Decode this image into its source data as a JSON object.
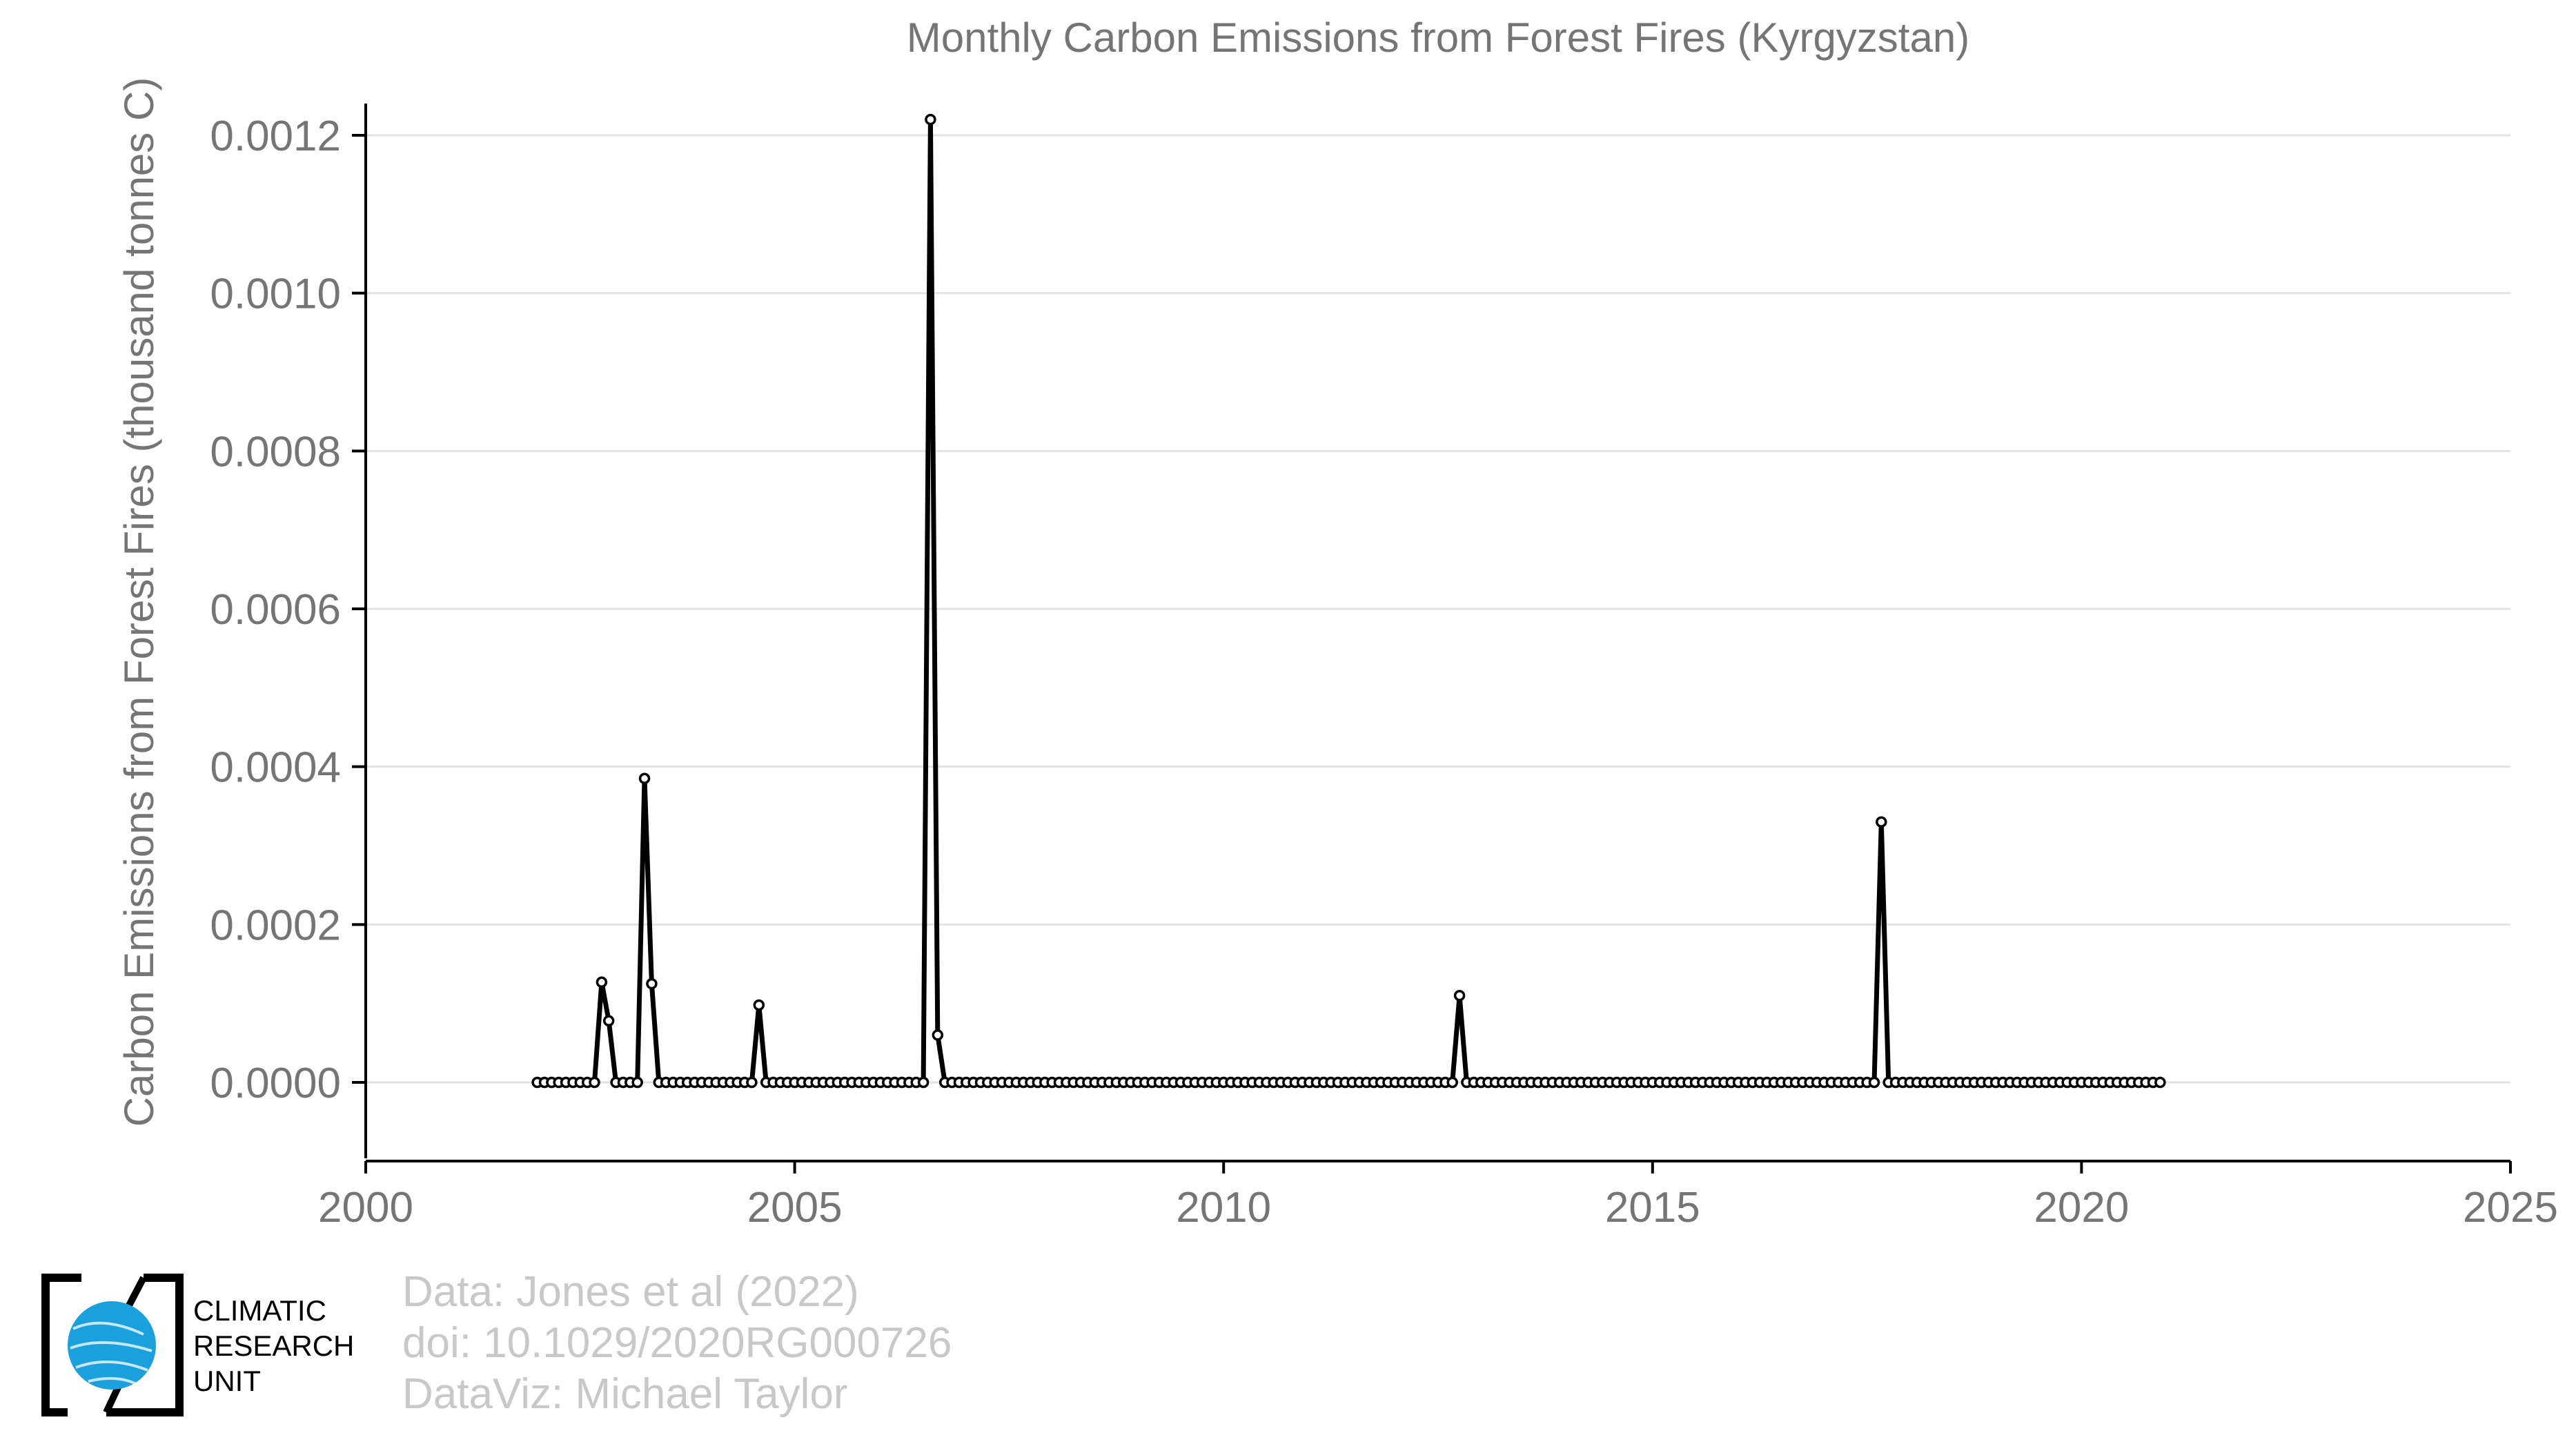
{
  "chart_data": {
    "type": "line",
    "title": "Monthly Carbon Emissions from Forest Fires (Kyrgyzstan)",
    "xlabel": "",
    "ylabel": "Carbon Emissions from Forest Fires (thousand tonnes C)",
    "xlim": [
      2000,
      2025
    ],
    "ylim": [
      -0.0001,
      0.00125
    ],
    "xticks": [
      2000,
      2005,
      2010,
      2015,
      2020,
      2025
    ],
    "xtick_labels": [
      "2000",
      "2005",
      "2010",
      "2015",
      "2020",
      "2025"
    ],
    "yticks": [
      0.0,
      0.0002,
      0.0004,
      0.0006,
      0.0008,
      0.001,
      0.0012
    ],
    "ytick_labels": [
      "0.0000",
      "0.0002",
      "0.0004",
      "0.0006",
      "0.0008",
      "0.0010",
      "0.0012"
    ],
    "grid": "horizontal",
    "colors": {
      "line": "#000000",
      "marker_fill": "#ffffff",
      "grid": "#e2e2e2",
      "axis": "#000000"
    },
    "series": [
      {
        "start": "2002-01",
        "end": "2020-12",
        "frequency": "monthly",
        "default_value": 0.0,
        "nonzero_values": [
          {
            "date": "2002-10",
            "value": 0.000127
          },
          {
            "date": "2002-11",
            "value": 7.8e-05
          },
          {
            "date": "2003-04",
            "value": 0.000385
          },
          {
            "date": "2003-05",
            "value": 0.000125
          },
          {
            "date": "2004-08",
            "value": 9.8e-05
          },
          {
            "date": "2006-08",
            "value": 0.00122
          },
          {
            "date": "2006-09",
            "value": 6e-05
          },
          {
            "date": "2012-10",
            "value": 0.00011
          },
          {
            "date": "2017-09",
            "value": 0.00033
          }
        ]
      }
    ]
  },
  "credits": {
    "line1": "Data: Jones et al (2022)",
    "line2": "doi: 10.1029/2020RG000726",
    "line3": "DataViz: Michael Taylor"
  },
  "logo": {
    "line1": "CLIMATIC",
    "line2": "RESEARCH",
    "line3": "UNIT"
  }
}
